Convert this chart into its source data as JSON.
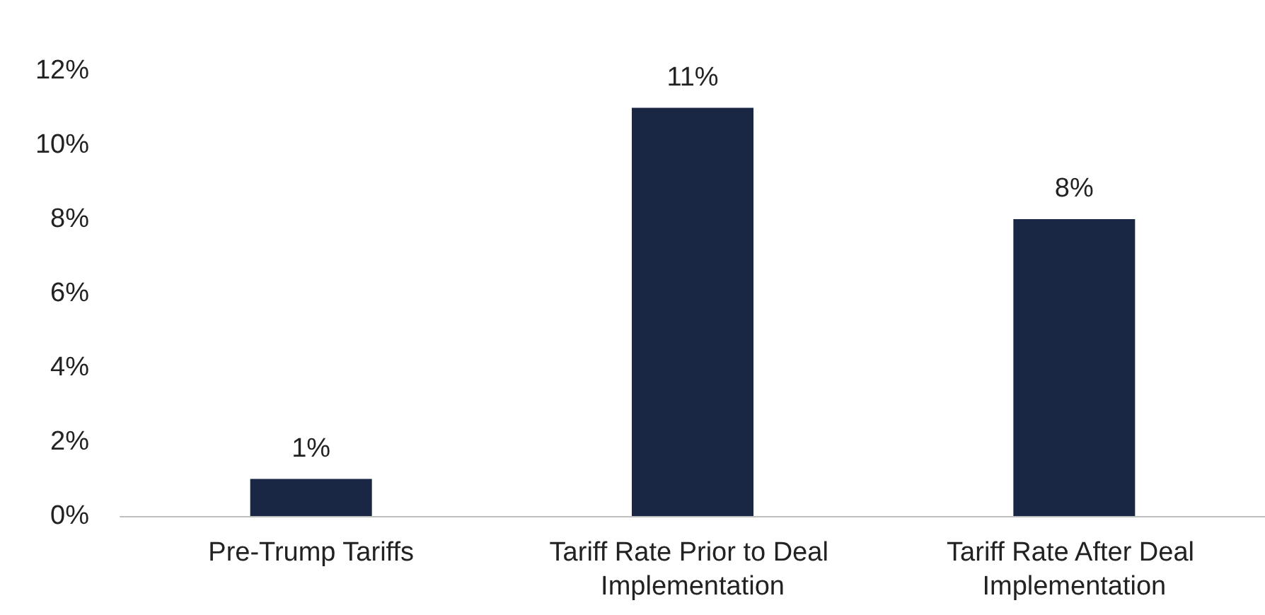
{
  "chart_data": {
    "type": "bar",
    "categories": [
      "Pre-Trump Tariffs",
      "Tariff Rate Prior to Deal Implementation",
      "Tariff Rate After Deal Implementation"
    ],
    "values": [
      1,
      11,
      8
    ],
    "color": "#1a2744",
    "value_labels": [
      "1%",
      "11%",
      "8%"
    ],
    "ylim": [
      0,
      12
    ],
    "yticks": [
      {
        "value": 0,
        "label": "0%"
      },
      {
        "value": 2,
        "label": "2%"
      },
      {
        "value": 4,
        "label": "4%"
      },
      {
        "value": 6,
        "label": "6%"
      },
      {
        "value": 8,
        "label": "8%"
      },
      {
        "value": 10,
        "label": "10%"
      },
      {
        "value": 12,
        "label": "12%"
      }
    ],
    "grid": false
  }
}
